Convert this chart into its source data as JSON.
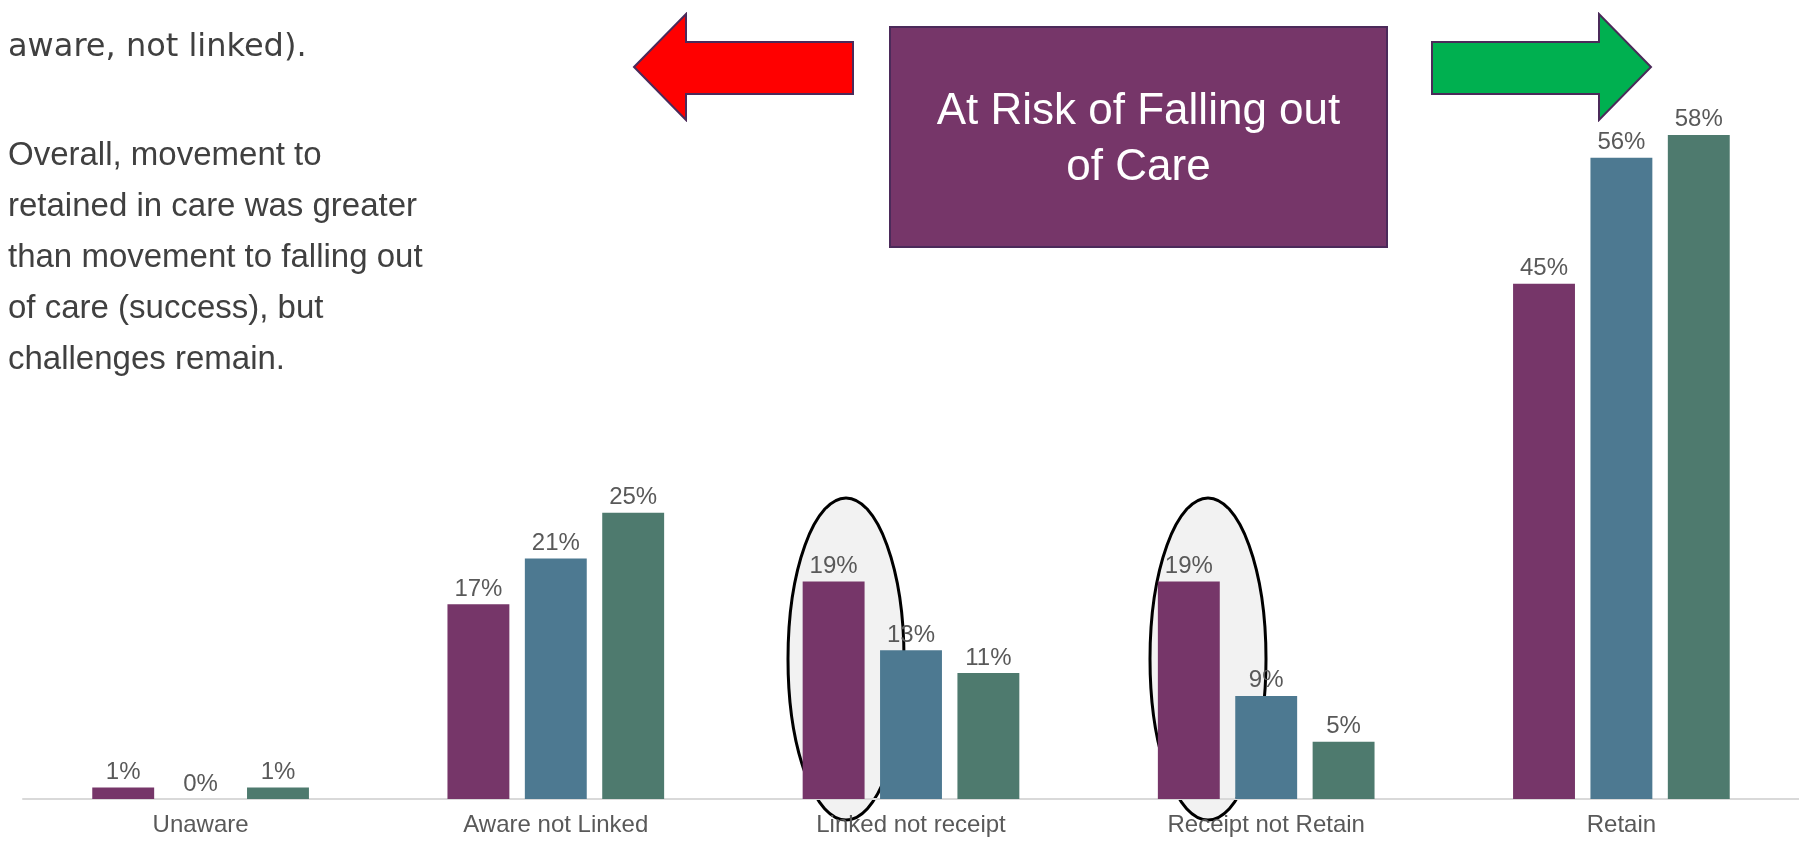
{
  "chart_data": {
    "type": "bar",
    "categories": [
      "Unaware",
      "Aware not Linked",
      "Linked not receipt",
      "Receipt not Retain",
      "Retain"
    ],
    "series": [
      {
        "color": "#763669",
        "values": [
          1,
          17,
          19,
          19,
          45
        ],
        "value_labels": [
          "1%",
          "17%",
          "19%",
          "19%",
          "45%"
        ]
      },
      {
        "color": "#4d7991",
        "values": [
          0,
          21,
          13,
          9,
          56
        ],
        "value_labels": [
          "0%",
          "21%",
          "13%",
          "9%",
          "56%"
        ]
      },
      {
        "color": "#4e7a6e",
        "values": [
          1,
          25,
          11,
          5,
          58
        ],
        "value_labels": [
          "1%",
          "25%",
          "11%",
          "5%",
          "58%"
        ]
      }
    ],
    "annotations": [
      "aware, not linked).",
      "Overall, movement to retained in care was greater than movement to falling out of care (success), but challenges remain.",
      "At Risk of Falling out of Care"
    ],
    "grid": false
  }
}
